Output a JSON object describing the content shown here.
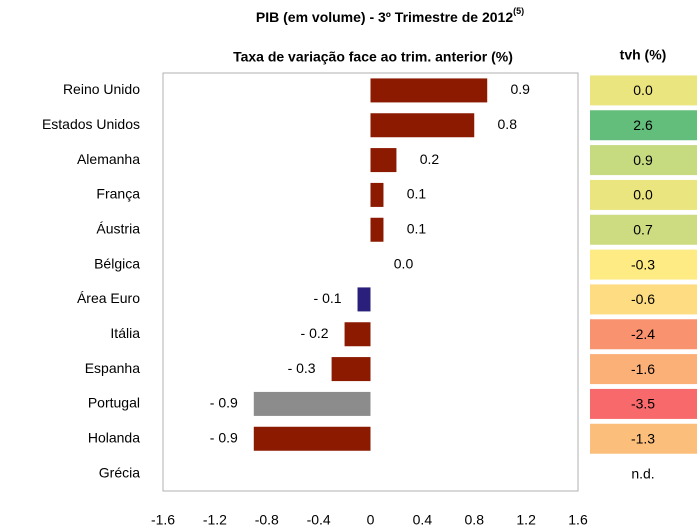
{
  "chart_data": {
    "type": "bar",
    "orientation": "horizontal",
    "title": "PIB (em volume) - 3º Trimestre de 2012",
    "title_superscript": "(5)",
    "subtitle": "Taxa de variação face ao trim. anterior (%)",
    "categories": [
      "Reino Unido",
      "Estados Unidos",
      "Alemanha",
      "França",
      "Áustria",
      "Bélgica",
      "Área Euro",
      "Itália",
      "Espanha",
      "Portugal",
      "Holanda",
      "Grécia"
    ],
    "values": [
      0.9,
      0.8,
      0.2,
      0.1,
      0.1,
      0.0,
      -0.1,
      -0.2,
      -0.3,
      -0.9,
      -0.9,
      null
    ],
    "value_labels": [
      "0.9",
      "0.8",
      "0.2",
      "0.1",
      "0.1",
      "0.0",
      "- 0.1",
      "- 0.2",
      "- 0.3",
      "- 0.9",
      "- 0.9",
      null
    ],
    "colors": [
      "#8b1a00",
      "#8b1a00",
      "#8b1a00",
      "#8b1a00",
      "#8b1a00",
      "#8b1a00",
      "#2a1f7a",
      "#8b1a00",
      "#8b1a00",
      "#8c8c8c",
      "#8b1a00",
      "#8b1a00"
    ],
    "xlim": [
      -1.6,
      1.6
    ],
    "xticks": [
      -1.6,
      -1.2,
      -0.8,
      -0.4,
      0,
      0.4,
      0.8,
      1.2,
      1.6
    ],
    "tvh": {
      "header": "tvh (%)",
      "values": [
        0.0,
        2.6,
        0.9,
        0.0,
        0.7,
        -0.3,
        -0.6,
        -2.4,
        -1.6,
        -3.5,
        -1.3,
        null
      ],
      "value_labels": [
        "0.0",
        "2.6",
        "0.9",
        "0.0",
        "0.7",
        "-0.3",
        "-0.6",
        "-2.4",
        "-1.6",
        "-3.5",
        "-1.3",
        "n.d."
      ],
      "colors": [
        "#ebe57f",
        "#63be7b",
        "#c6da80",
        "#ebe57f",
        "#cddc81",
        "#feeb84",
        "#fddc82",
        "#f8926f",
        "#fbb078",
        "#f8696b",
        "#fcbf7b",
        "#ffffff"
      ]
    }
  }
}
